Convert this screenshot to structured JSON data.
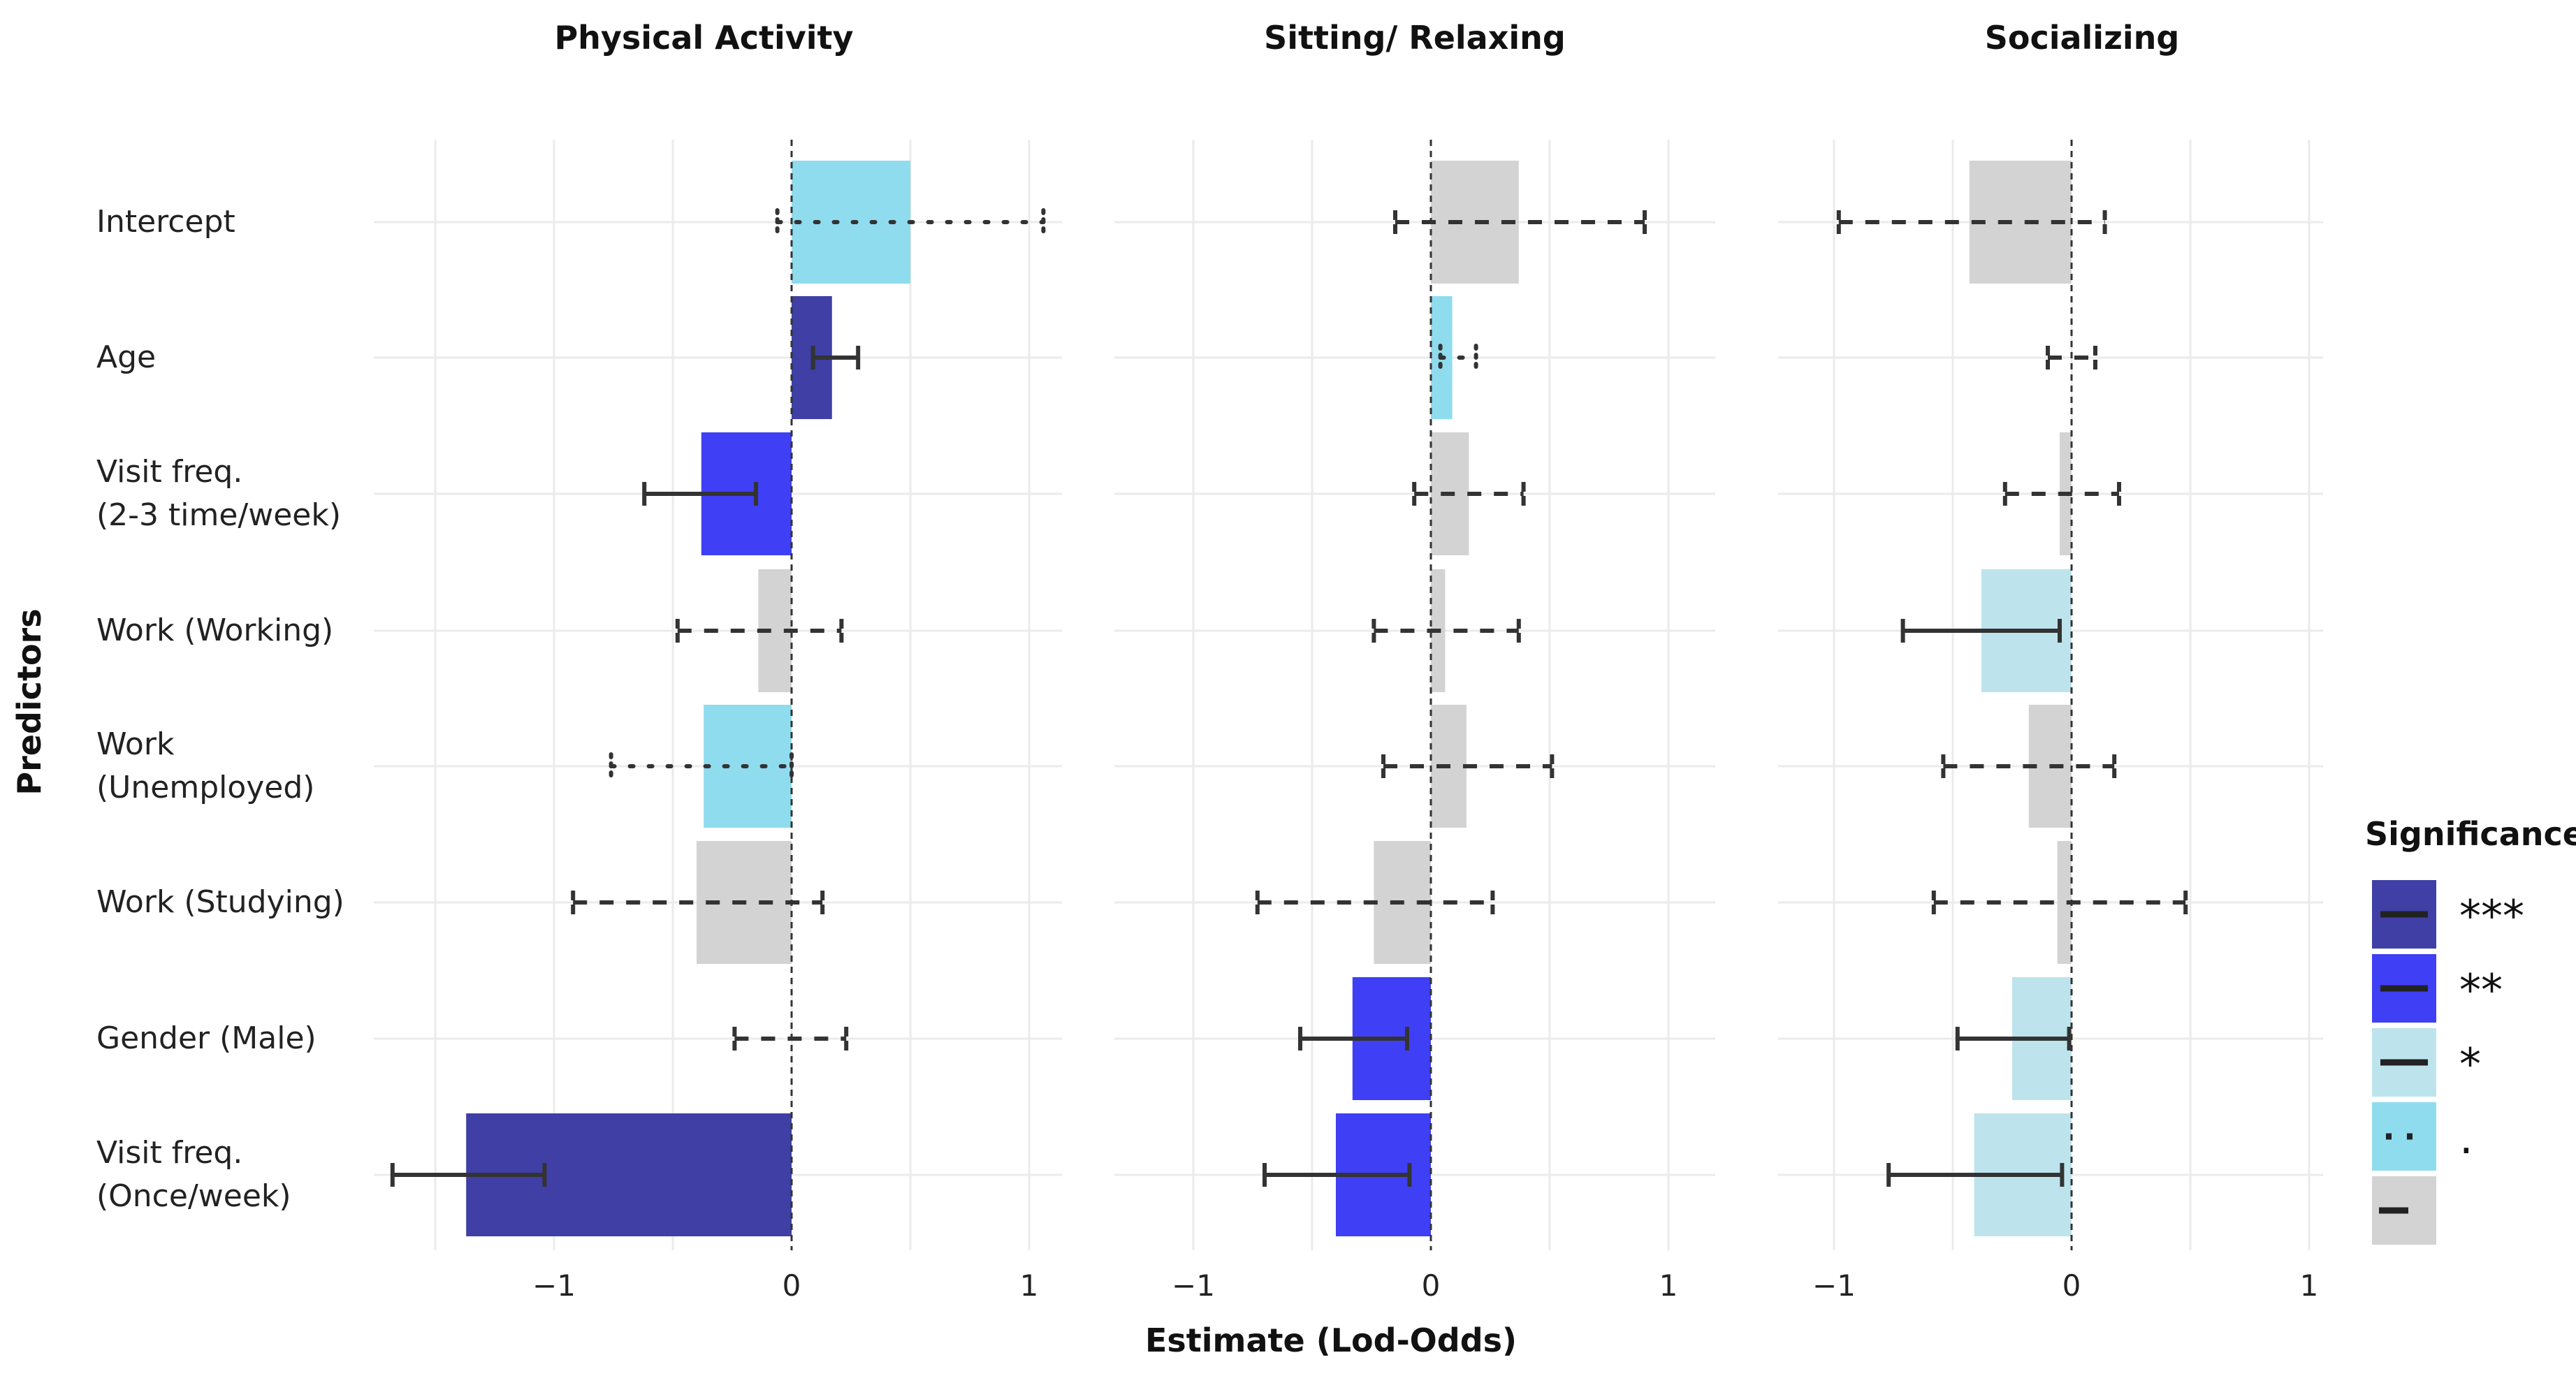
{
  "chart_data": {
    "type": "bar",
    "orientation": "horizontal",
    "title": "",
    "xlabel": "Estimate (Lod-Odds)",
    "ylabel": "Predictors",
    "xlim": [
      -1.5,
      1.15
    ],
    "xticks": [
      -1,
      0,
      1
    ],
    "xtick_labels": [
      "−1",
      "0",
      "1"
    ],
    "grid": true,
    "categories": [
      "Intercept",
      "Age",
      "Visit freq.\n(2-3 time/week)",
      "Work (Working)",
      "Work\n(Unemployed)",
      "Work (Studying)",
      "Gender (Male)",
      "Visit freq.\n(Once/week)"
    ],
    "significance_colors": {
      "***": "#3F3FA6",
      "**": "#3F3FF5",
      "*": "#BDE4EC",
      ".": "#8FDCEF",
      "ns": "#D3D3D3"
    },
    "panels": [
      {
        "name": "Physical Activity",
        "values": [
          0.5,
          0.17,
          -0.38,
          -0.14,
          -0.37,
          -0.4,
          0.0,
          -1.37
        ],
        "ci_low": [
          -0.06,
          0.09,
          -0.62,
          -0.48,
          -0.76,
          -0.92,
          -0.24,
          -1.68
        ],
        "ci_high": [
          1.06,
          0.28,
          -0.15,
          0.21,
          0.0,
          0.13,
          0.23,
          -1.04
        ],
        "significance": [
          ".",
          "***",
          "**",
          "ns",
          ".",
          "ns",
          "ns",
          "***"
        ]
      },
      {
        "name": "Sitting/ Relaxing",
        "values": [
          0.37,
          0.09,
          0.16,
          0.06,
          0.15,
          -0.24,
          -0.33,
          -0.4
        ],
        "ci_low": [
          -0.15,
          0.04,
          -0.07,
          -0.24,
          -0.2,
          -0.73,
          -0.55,
          -0.7
        ],
        "ci_high": [
          0.9,
          0.19,
          0.39,
          0.37,
          0.51,
          0.26,
          -0.1,
          -0.09
        ],
        "significance": [
          "ns",
          ".",
          "ns",
          "ns",
          "ns",
          "ns",
          "**",
          "**"
        ]
      },
      {
        "name": "Socializing",
        "values": [
          -0.43,
          0.0,
          -0.05,
          -0.38,
          -0.18,
          -0.06,
          -0.25,
          -0.41
        ],
        "ci_low": [
          -0.98,
          -0.1,
          -0.28,
          -0.71,
          -0.54,
          -0.58,
          -0.48,
          -0.77
        ],
        "ci_high": [
          0.14,
          0.1,
          0.2,
          -0.05,
          0.18,
          0.48,
          -0.01,
          -0.04
        ],
        "significance": [
          "ns",
          "ns",
          "ns",
          "*",
          "ns",
          "ns",
          "*",
          "*"
        ]
      }
    ],
    "legend": {
      "title": "Significance",
      "position": "right",
      "entries": [
        {
          "label": "***",
          "key": "***"
        },
        {
          "label": "**",
          "key": "**"
        },
        {
          "label": "*",
          "key": "*"
        },
        {
          "label": ".",
          "key": "."
        },
        {
          "label": "",
          "key": "ns"
        }
      ]
    }
  }
}
